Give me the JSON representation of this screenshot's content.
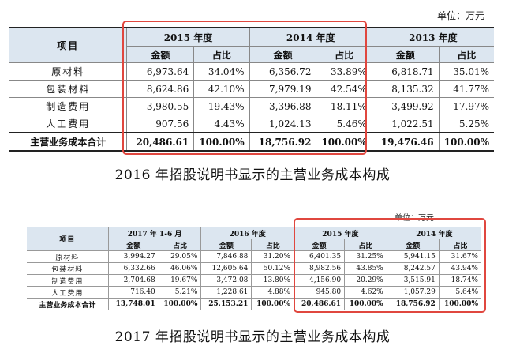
{
  "table1": {
    "unit": "单位：万元",
    "item_header": "项目",
    "years": [
      "2015 年度",
      "2014 年度",
      "2013 年度"
    ],
    "amount_label": "金额",
    "ratio_label": "占比",
    "rows": [
      {
        "item": "原材料",
        "cells": [
          "6,973.64",
          "34.04%",
          "6,356.72",
          "33.89%",
          "6,818.71",
          "35.01%"
        ]
      },
      {
        "item": "包装材料",
        "cells": [
          "8,624.86",
          "42.10%",
          "7,979.19",
          "42.54%",
          "8,135.32",
          "41.77%"
        ]
      },
      {
        "item": "制造费用",
        "cells": [
          "3,980.55",
          "19.43%",
          "3,396.88",
          "18.11%",
          "3,499.92",
          "17.97%"
        ]
      },
      {
        "item": "人工费用",
        "cells": [
          "907.56",
          "4.43%",
          "1,024.13",
          "5.46%",
          "1,022.51",
          "5.25%"
        ]
      }
    ],
    "total": {
      "item": "主营业务成本合计",
      "cells": [
        "20,486.61",
        "100.00%",
        "18,756.92",
        "100.00%",
        "19,476.46",
        "100.00%"
      ]
    },
    "caption": "2016 年招股说明书显示的主营业务成本构成"
  },
  "table2": {
    "unit": "单位：万元",
    "item_header": "项目",
    "years": [
      "2017 年 1-6 月",
      "2016 年度",
      "2015 年度",
      "2014 年度"
    ],
    "amount_label": "金额",
    "ratio_label": "占比",
    "rows": [
      {
        "item": "原材料",
        "cells": [
          "3,994.27",
          "29.05%",
          "7,846.88",
          "31.20%",
          "6,401.35",
          "31.25%",
          "5,941.15",
          "31.67%"
        ]
      },
      {
        "item": "包装材料",
        "cells": [
          "6,332.66",
          "46.06%",
          "12,605.64",
          "50.12%",
          "8,982.56",
          "43.85%",
          "8,242.57",
          "43.94%"
        ]
      },
      {
        "item": "制造费用",
        "cells": [
          "2,704.68",
          "19.67%",
          "3,472.08",
          "13.80%",
          "4,156.90",
          "20.29%",
          "3,515.91",
          "18.74%"
        ]
      },
      {
        "item": "人工费用",
        "cells": [
          "716.40",
          "5.21%",
          "1,228.61",
          "4.88%",
          "945.80",
          "4.62%",
          "1,057.29",
          "5.64%"
        ]
      }
    ],
    "total": {
      "item": "主营业务成本合计",
      "cells": [
        "13,748.01",
        "100.00%",
        "25,153.21",
        "100.00%",
        "20,486.61",
        "100.00%",
        "18,756.92",
        "100.00%"
      ]
    },
    "caption": "2017 年招股说明书显示的主营业务成本构成"
  },
  "highlight_color": "#e0473f"
}
